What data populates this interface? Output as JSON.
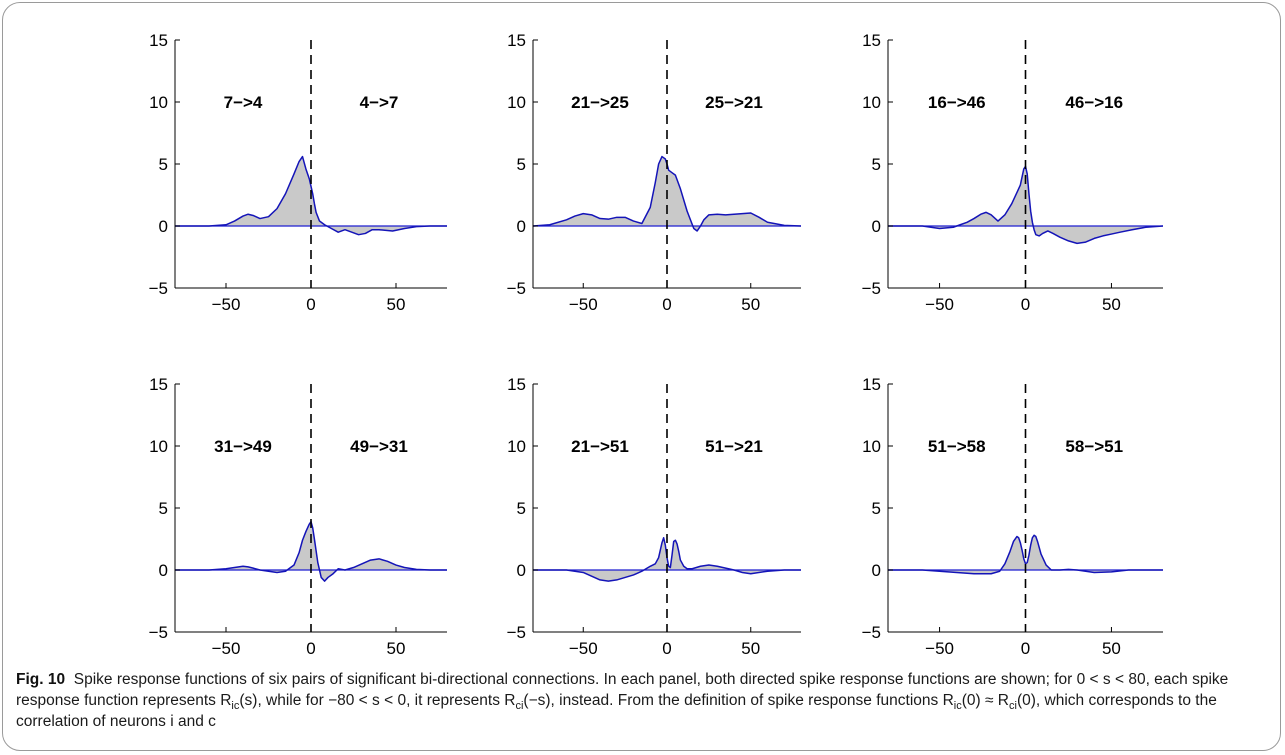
{
  "figure": {
    "caption_label": "Fig. 10",
    "caption_sentence1": "Spike response functions of six pairs of significant bi-directional connections. In each panel, both directed spike response functions are shown; for 0 < s < 80, each spike response function represents R",
    "caption_r1_sub": "ic",
    "caption_r1_arg": "(s)",
    "caption_mid1": ", while for −80 < s < 0, it represents R",
    "caption_r2_sub": "ci",
    "caption_r2_arg": "(−s)",
    "caption_mid2": ", instead. From the definition of spike response functions R",
    "caption_r3_sub": "ic",
    "caption_r3_arg": "(0) ≈ R",
    "caption_r4_sub": "ci",
    "caption_r4_arg": "(0)",
    "caption_end": ", which corresponds to the correlation of neurons i and c"
  },
  "chart_data": [
    {
      "type": "area",
      "labels": [
        "7−>4",
        "4−>7"
      ],
      "xlim": [
        -80,
        80
      ],
      "ylim": [
        -5,
        15
      ],
      "xticks": [
        -50,
        0,
        50
      ],
      "yticks": [
        -5,
        0,
        5,
        10,
        15
      ],
      "xtick_labels": [
        "−50",
        "0",
        "50"
      ],
      "ytick_labels": [
        "−5",
        "0",
        "5",
        "10",
        "15"
      ],
      "x": [
        -80,
        -60,
        -50,
        -45,
        -40,
        -37,
        -34,
        -30,
        -25,
        -20,
        -15,
        -10,
        -7,
        -5,
        -3,
        -1,
        0,
        1,
        2,
        3,
        5,
        8,
        12,
        16,
        20,
        24,
        28,
        32,
        36,
        40,
        48,
        55,
        62,
        70,
        80
      ],
      "y": [
        0,
        0,
        0.1,
        0.4,
        0.8,
        0.95,
        0.85,
        0.6,
        0.75,
        1.4,
        2.6,
        4.2,
        5.2,
        5.6,
        4.6,
        3.8,
        3.2,
        2.6,
        1.8,
        1.1,
        0.4,
        0.1,
        -0.2,
        -0.5,
        -0.3,
        -0.5,
        -0.7,
        -0.6,
        -0.3,
        -0.3,
        -0.4,
        -0.2,
        -0.05,
        0,
        0
      ],
      "grid": false
    },
    {
      "type": "area",
      "labels": [
        "21−>25",
        "25−>21"
      ],
      "xlim": [
        -80,
        80
      ],
      "ylim": [
        -5,
        15
      ],
      "xticks": [
        -50,
        0,
        50
      ],
      "yticks": [
        -5,
        0,
        5,
        10,
        15
      ],
      "xtick_labels": [
        "−50",
        "0",
        "50"
      ],
      "ytick_labels": [
        "−5",
        "0",
        "5",
        "10",
        "15"
      ],
      "x": [
        -80,
        -70,
        -60,
        -55,
        -50,
        -45,
        -40,
        -35,
        -30,
        -25,
        -20,
        -15,
        -10,
        -7,
        -5,
        -3,
        -1,
        0,
        1,
        3,
        5,
        8,
        12,
        16,
        18,
        20,
        22,
        25,
        30,
        35,
        40,
        45,
        50,
        55,
        60,
        70,
        80
      ],
      "y": [
        0,
        0.1,
        0.5,
        0.8,
        1.0,
        0.9,
        0.6,
        0.55,
        0.7,
        0.7,
        0.4,
        0.2,
        1.5,
        3.5,
        5.0,
        5.6,
        5.4,
        5.0,
        4.5,
        4.3,
        4.1,
        3.0,
        1.2,
        -0.2,
        -0.4,
        0,
        0.5,
        0.9,
        0.95,
        0.9,
        0.95,
        1.0,
        1.05,
        0.7,
        0.3,
        0.05,
        0
      ],
      "grid": false
    },
    {
      "type": "area",
      "labels": [
        "16−>46",
        "46−>16"
      ],
      "xlim": [
        -80,
        80
      ],
      "ylim": [
        -5,
        15
      ],
      "xticks": [
        -50,
        0,
        50
      ],
      "yticks": [
        -5,
        0,
        5,
        10,
        15
      ],
      "xtick_labels": [
        "−50",
        "0",
        "50"
      ],
      "ytick_labels": [
        "−5",
        "0",
        "5",
        "10",
        "15"
      ],
      "x": [
        -80,
        -60,
        -50,
        -42,
        -38,
        -34,
        -30,
        -26,
        -23,
        -20,
        -16,
        -12,
        -8,
        -5,
        -3,
        -1,
        0,
        1,
        2,
        3,
        4,
        5,
        6,
        8,
        10,
        13,
        16,
        20,
        25,
        30,
        35,
        40,
        45,
        50,
        55,
        62,
        70,
        80
      ],
      "y": [
        0,
        0,
        -0.2,
        -0.1,
        0.1,
        0.3,
        0.6,
        0.95,
        1.1,
        0.9,
        0.4,
        0.9,
        1.8,
        2.7,
        3.3,
        4.6,
        4.8,
        4.2,
        2.6,
        1.2,
        0.3,
        -0.3,
        -0.7,
        -0.8,
        -0.6,
        -0.4,
        -0.6,
        -0.9,
        -1.2,
        -1.4,
        -1.3,
        -1.0,
        -0.8,
        -0.65,
        -0.5,
        -0.3,
        -0.1,
        0
      ],
      "grid": false
    },
    {
      "type": "area",
      "labels": [
        "31−>49",
        "49−>31"
      ],
      "xlim": [
        -80,
        80
      ],
      "ylim": [
        -5,
        15
      ],
      "xticks": [
        -50,
        0,
        50
      ],
      "yticks": [
        -5,
        0,
        5,
        10,
        15
      ],
      "xtick_labels": [
        "−50",
        "0",
        "50"
      ],
      "ytick_labels": [
        "−5",
        "0",
        "5",
        "10",
        "15"
      ],
      "x": [
        -80,
        -60,
        -50,
        -45,
        -40,
        -37,
        -34,
        -30,
        -20,
        -15,
        -10,
        -7,
        -5,
        -3,
        -1,
        0,
        1,
        2,
        4,
        6,
        8,
        10,
        13,
        16,
        20,
        25,
        30,
        35,
        40,
        45,
        50,
        55,
        62,
        70,
        80
      ],
      "y": [
        0,
        0,
        0.1,
        0.2,
        0.3,
        0.25,
        0.15,
        0,
        -0.2,
        -0.1,
        0.4,
        1.4,
        2.4,
        3.1,
        3.7,
        3.9,
        3.4,
        2.5,
        0.6,
        -0.6,
        -0.9,
        -0.6,
        -0.3,
        0.1,
        0,
        0.2,
        0.5,
        0.8,
        0.9,
        0.7,
        0.4,
        0.2,
        0.05,
        0,
        0
      ],
      "grid": false
    },
    {
      "type": "area",
      "labels": [
        "21−>51",
        "51−>21"
      ],
      "xlim": [
        -80,
        80
      ],
      "ylim": [
        -5,
        15
      ],
      "xticks": [
        -50,
        0,
        50
      ],
      "yticks": [
        -5,
        0,
        5,
        10,
        15
      ],
      "xtick_labels": [
        "−50",
        "0",
        "50"
      ],
      "ytick_labels": [
        "−5",
        "0",
        "5",
        "10",
        "15"
      ],
      "x": [
        -80,
        -60,
        -50,
        -45,
        -40,
        -35,
        -30,
        -25,
        -20,
        -15,
        -10,
        -7,
        -5,
        -3,
        -2,
        -1,
        0,
        1,
        2,
        3,
        4,
        5,
        6,
        7,
        8,
        10,
        12,
        15,
        20,
        25,
        30,
        35,
        40,
        45,
        50,
        60,
        70,
        80
      ],
      "y": [
        0,
        0,
        -0.2,
        -0.5,
        -0.8,
        -0.9,
        -0.8,
        -0.6,
        -0.4,
        -0.1,
        0.3,
        0.5,
        1.0,
        2.2,
        2.6,
        2.0,
        1.0,
        0.3,
        0.2,
        1.2,
        2.3,
        2.4,
        2.1,
        1.5,
        0.8,
        0.3,
        0.1,
        0.1,
        0.3,
        0.4,
        0.3,
        0.15,
        0,
        -0.2,
        -0.3,
        -0.1,
        0,
        0
      ],
      "grid": false
    },
    {
      "type": "area",
      "labels": [
        "51−>58",
        "58−>51"
      ],
      "xlim": [
        -80,
        80
      ],
      "ylim": [
        -5,
        15
      ],
      "xticks": [
        -50,
        0,
        50
      ],
      "yticks": [
        -5,
        0,
        5,
        10,
        15
      ],
      "xtick_labels": [
        "−50",
        "0",
        "50"
      ],
      "ytick_labels": [
        "−5",
        "0",
        "5",
        "10",
        "15"
      ],
      "x": [
        -80,
        -60,
        -50,
        -40,
        -30,
        -20,
        -15,
        -12,
        -9,
        -7,
        -5,
        -4,
        -3,
        -2,
        -1,
        0,
        1,
        2,
        3,
        4,
        5,
        6,
        7,
        9,
        12,
        15,
        20,
        25,
        30,
        40,
        50,
        60,
        70,
        80
      ],
      "y": [
        0,
        0,
        -0.1,
        -0.2,
        -0.3,
        -0.3,
        -0.1,
        0.5,
        1.5,
        2.3,
        2.7,
        2.6,
        2.2,
        1.6,
        0.9,
        0.5,
        0.6,
        1.2,
        2.0,
        2.6,
        2.8,
        2.7,
        2.3,
        1.3,
        0.4,
        0,
        0,
        0.05,
        0,
        -0.2,
        -0.15,
        0,
        0,
        0
      ],
      "grid": false
    }
  ]
}
